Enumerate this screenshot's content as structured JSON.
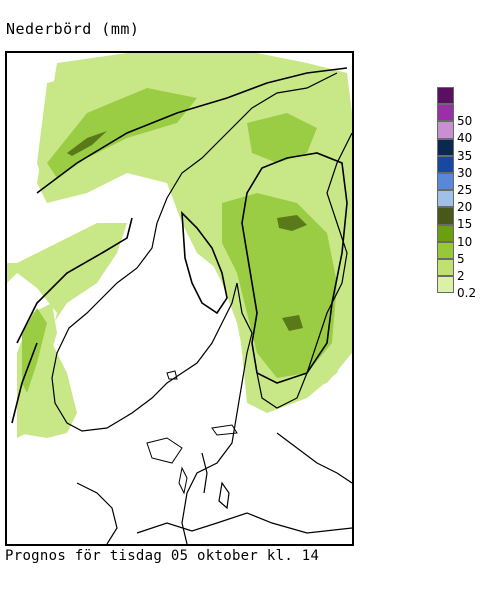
{
  "title": "Nederbörd (mm)",
  "caption": "Prognos för tisdag 05 oktober kl. 14",
  "legend": {
    "colors": [
      "#5a1060",
      "#9a30a8",
      "#c890d0",
      "#0a2850",
      "#1848a0",
      "#5888d8",
      "#a0c0e8",
      "#485818",
      "#6aa010",
      "#98c838",
      "#c0e070",
      "#dcf0a8"
    ],
    "labels": [
      "50",
      "40",
      "35",
      "30",
      "25",
      "20",
      "15",
      "10",
      "5",
      "2",
      "0.2"
    ]
  },
  "map": {
    "colors": {
      "light": "#c8e888",
      "mid": "#9acd44",
      "dark": "#5a7a1a",
      "deep": "#4e5a1e"
    }
  }
}
